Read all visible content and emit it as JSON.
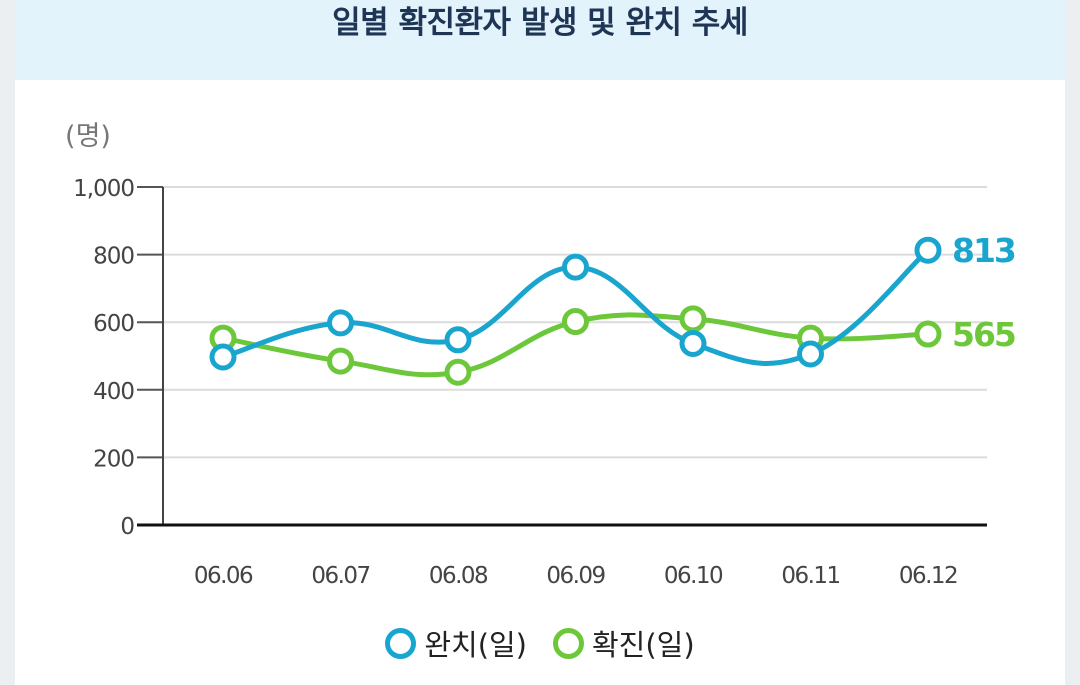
{
  "title": "일별 확진환자 발생 및 완치 추세",
  "chart_data": {
    "type": "line",
    "ylabel": "(명)",
    "ylim": [
      0,
      1000
    ],
    "y_ticks": [
      "0",
      "200",
      "400",
      "600",
      "800",
      "1,000"
    ],
    "y_tick_values": [
      0,
      200,
      400,
      600,
      800,
      1000
    ],
    "categories": [
      "06.06",
      "06.07",
      "06.08",
      "06.09",
      "06.10",
      "06.11",
      "06.12"
    ],
    "series": [
      {
        "name": "완치(일)",
        "color": "#1aa5cf",
        "values": [
          497,
          598,
          548,
          763,
          537,
          506,
          813
        ],
        "end_label": "813"
      },
      {
        "name": "확진(일)",
        "color": "#6cc83a",
        "values": [
          553,
          485,
          452,
          602,
          610,
          553,
          565
        ],
        "end_label": "565"
      }
    ],
    "grid": true,
    "legend_position": "bottom-center"
  }
}
